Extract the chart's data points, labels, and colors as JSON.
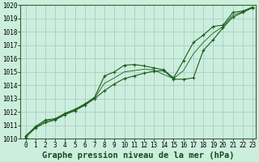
{
  "title": "Graphe pression niveau de la mer (hPa)",
  "bg_color": "#cceedd",
  "grid_color": "#aacccc",
  "line_color": "#1a5c1a",
  "xlim": [
    0,
    23
  ],
  "ylim": [
    1010,
    1020
  ],
  "xticks": [
    0,
    1,
    2,
    3,
    4,
    5,
    6,
    7,
    8,
    9,
    10,
    11,
    12,
    13,
    14,
    15,
    16,
    17,
    18,
    19,
    20,
    21,
    22,
    23
  ],
  "yticks": [
    1010,
    1011,
    1012,
    1013,
    1014,
    1015,
    1016,
    1017,
    1018,
    1019,
    1020
  ],
  "series1_x": [
    0,
    1,
    2,
    3,
    4,
    5,
    6,
    7,
    8,
    9,
    10,
    11,
    12,
    13,
    14,
    15,
    16,
    17,
    18,
    19,
    20,
    21,
    22,
    23
  ],
  "series1_y": [
    1010.2,
    1010.9,
    1011.4,
    1011.5,
    1011.9,
    1012.2,
    1012.6,
    1013.1,
    1014.7,
    1015.0,
    1015.5,
    1015.55,
    1015.45,
    1015.3,
    1015.15,
    1014.55,
    1015.85,
    1017.2,
    1017.75,
    1018.4,
    1018.5,
    1019.45,
    1019.55,
    1019.85
  ],
  "series2_x": [
    0,
    1,
    2,
    3,
    4,
    5,
    6,
    7,
    8,
    9,
    10,
    11,
    12,
    13,
    14,
    15,
    16,
    17,
    18,
    19,
    20,
    21,
    22,
    23
  ],
  "series2_y": [
    1010.1,
    1010.8,
    1011.2,
    1011.4,
    1011.8,
    1012.1,
    1012.5,
    1013.0,
    1013.6,
    1014.1,
    1014.5,
    1014.7,
    1014.9,
    1015.05,
    1015.1,
    1014.45,
    1014.45,
    1014.55,
    1016.6,
    1017.4,
    1018.3,
    1019.1,
    1019.45,
    1019.8
  ],
  "series3_x": [
    0,
    1,
    2,
    3,
    4,
    5,
    6,
    7,
    8,
    9,
    10,
    11,
    12,
    13,
    14,
    15,
    16,
    17,
    18,
    19,
    20,
    21,
    22,
    23
  ],
  "series3_y": [
    1010.15,
    1010.85,
    1011.3,
    1011.45,
    1011.85,
    1012.15,
    1012.55,
    1013.05,
    1014.15,
    1014.55,
    1015.0,
    1015.1,
    1015.2,
    1015.15,
    1014.8,
    1014.5,
    1015.1,
    1016.35,
    1017.2,
    1017.9,
    1018.4,
    1019.25,
    1019.5,
    1019.83
  ],
  "title_fontsize": 7.5,
  "tick_fontsize": 5.5
}
